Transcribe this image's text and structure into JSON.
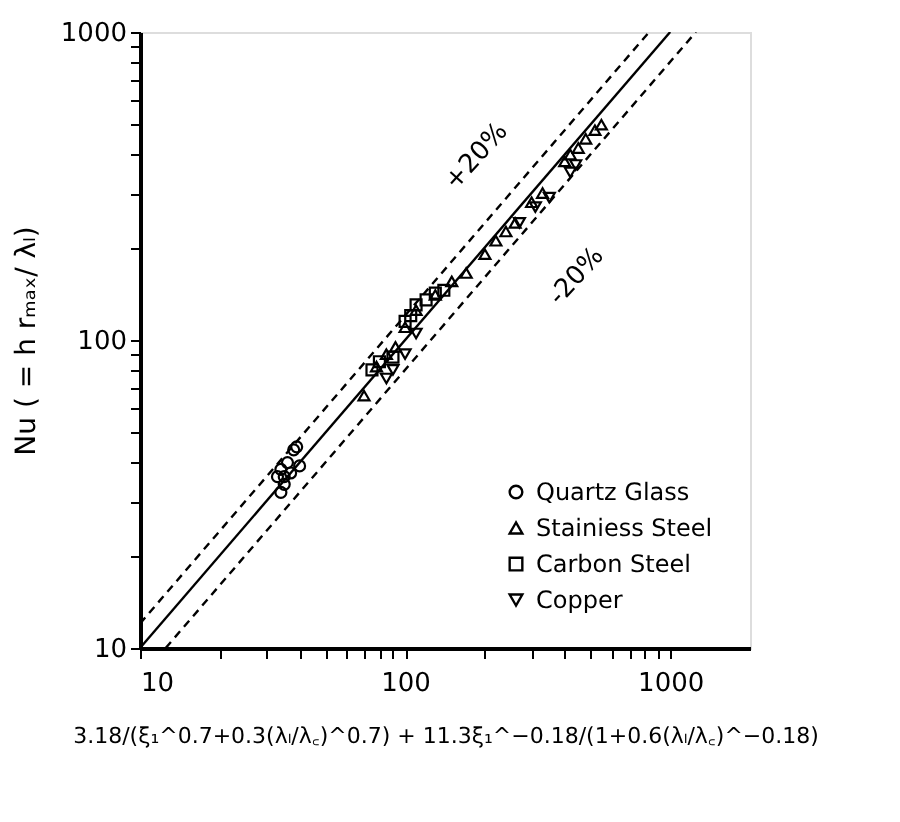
{
  "chart_data": {
    "type": "scatter",
    "xlabel": "3.18/(ξ₁^0.7+0.3(λₗ/λ꜀)^0.7) + 11.3ξ₁^−0.18/(1+0.6(λₗ/λ꜀)^−0.18)",
    "ylabel": "Nu ( = h rₘₐₓ/ λₗ)",
    "log": "xy",
    "grid": false,
    "legend": "bottom right",
    "xlim": [
      10,
      2000
    ],
    "ylim": [
      10,
      1000
    ],
    "xticks": [
      10,
      {
        "value": 20,
        "label": null
      },
      {
        "value": 30,
        "label": null
      },
      {
        "value": 40,
        "label": null
      },
      {
        "value": 50,
        "label": null
      },
      {
        "value": 60,
        "label": null
      },
      {
        "value": 70,
        "label": null
      },
      {
        "value": 80,
        "label": null
      },
      {
        "value": 90,
        "label": null
      },
      100,
      {
        "value": 200,
        "label": null
      },
      {
        "value": 300,
        "label": null
      },
      {
        "value": 400,
        "label": null
      },
      {
        "value": 500,
        "label": null
      },
      {
        "value": 600,
        "label": null
      },
      {
        "value": 700,
        "label": null
      },
      {
        "value": 800,
        "label": null
      },
      {
        "value": 900,
        "label": null
      },
      1000
    ],
    "yticks": [
      10,
      {
        "value": 20,
        "label": null
      },
      {
        "value": 30,
        "label": null
      },
      {
        "value": 40,
        "label": null
      },
      {
        "value": 50,
        "label": null
      },
      {
        "value": 60,
        "label": null
      },
      {
        "value": 70,
        "label": null
      },
      {
        "value": 80,
        "label": null
      },
      {
        "value": 90,
        "label": null
      },
      100,
      {
        "value": 200,
        "label": null
      },
      {
        "value": 300,
        "label": null
      },
      {
        "value": 400,
        "label": null
      },
      {
        "value": 500,
        "label": null
      },
      {
        "value": 600,
        "label": null
      },
      {
        "value": 700,
        "label": null
      },
      {
        "value": 800,
        "label": null
      },
      {
        "value": 900,
        "label": null
      },
      1000
    ],
    "series": [
      {
        "type": "line",
        "color": "#000000",
        "line_style": "solid",
        "x": [
          10,
          1000
        ],
        "values": [
          10,
          1000
        ]
      },
      {
        "type": "line",
        "color": "#000000",
        "line_style": "dashed",
        "x": [
          10,
          833
        ],
        "values": [
          12,
          1000
        ]
      },
      {
        "type": "line",
        "color": "#000000",
        "line_style": "dashed",
        "x": [
          12.5,
          1250
        ],
        "values": [
          10,
          1000
        ]
      },
      {
        "name": "Quartz Glass",
        "color": "#000000",
        "marker": "circle",
        "x": [
          33,
          34,
          35,
          36,
          38,
          39,
          37,
          34,
          40,
          35
        ],
        "values": [
          36,
          38,
          34,
          40,
          44,
          45,
          37,
          32,
          39,
          36
        ]
      },
      {
        "name": "Stainiess Steel",
        "color": "#000000",
        "marker": "triangle",
        "x": [
          70,
          78,
          85,
          92,
          100,
          110,
          130,
          150,
          170,
          200,
          220,
          240,
          260,
          300,
          330,
          400,
          420,
          450,
          480,
          520,
          550
        ],
        "values": [
          66,
          82,
          90,
          95,
          110,
          125,
          140,
          155,
          165,
          190,
          210,
          225,
          240,
          280,
          300,
          380,
          400,
          420,
          450,
          480,
          500
        ]
      },
      {
        "name": "Carbon Steel",
        "color": "#000000",
        "marker": "square",
        "x": [
          75,
          80,
          90,
          100,
          105,
          110,
          120,
          130,
          140
        ],
        "values": [
          80,
          85,
          88,
          115,
          120,
          130,
          135,
          142,
          145
        ]
      },
      {
        "name": "Copper",
        "color": "#000000",
        "marker": "triangle-down",
        "x": [
          85,
          90,
          100,
          110,
          270,
          310,
          350,
          420,
          440
        ],
        "values": [
          75,
          80,
          90,
          105,
          240,
          270,
          290,
          350,
          370
        ]
      }
    ],
    "annotations": [
      "+20%",
      "-20%"
    ]
  }
}
